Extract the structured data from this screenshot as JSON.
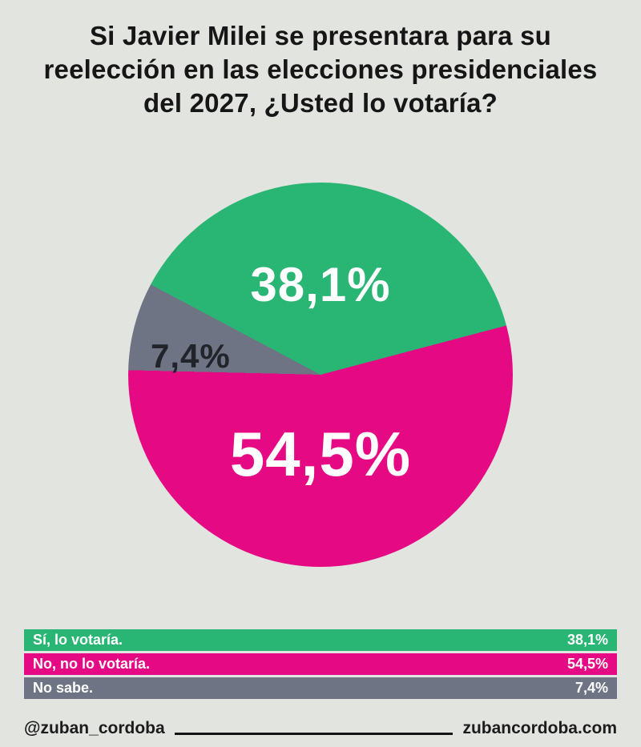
{
  "page": {
    "background": "#e2e4df"
  },
  "title_lines": [
    "Si Javier Milei se presentara para  su",
    "reelección en las elecciones presidenciales",
    "del 2027, ¿Usted lo votaría?"
  ],
  "chart_data": {
    "type": "pie",
    "title": "Si Javier Milei se presentara para su reelección en las elecciones presidenciales del 2027, ¿Usted lo votaría?",
    "legend_position": "bottom",
    "slices": [
      {
        "label": "Sí, lo votaría.",
        "value": 38.1,
        "display": "38,1%",
        "color": "#29b573"
      },
      {
        "label": "No, no lo votaría.",
        "value": 54.5,
        "display": "54,5%",
        "color": "#e50a84"
      },
      {
        "label": "No sabe.",
        "value": 7.4,
        "display": "7,4%",
        "color": "#6e7483"
      }
    ]
  },
  "footer": {
    "handle": "@zuban_cordoba",
    "website": "zubancordoba.com"
  }
}
